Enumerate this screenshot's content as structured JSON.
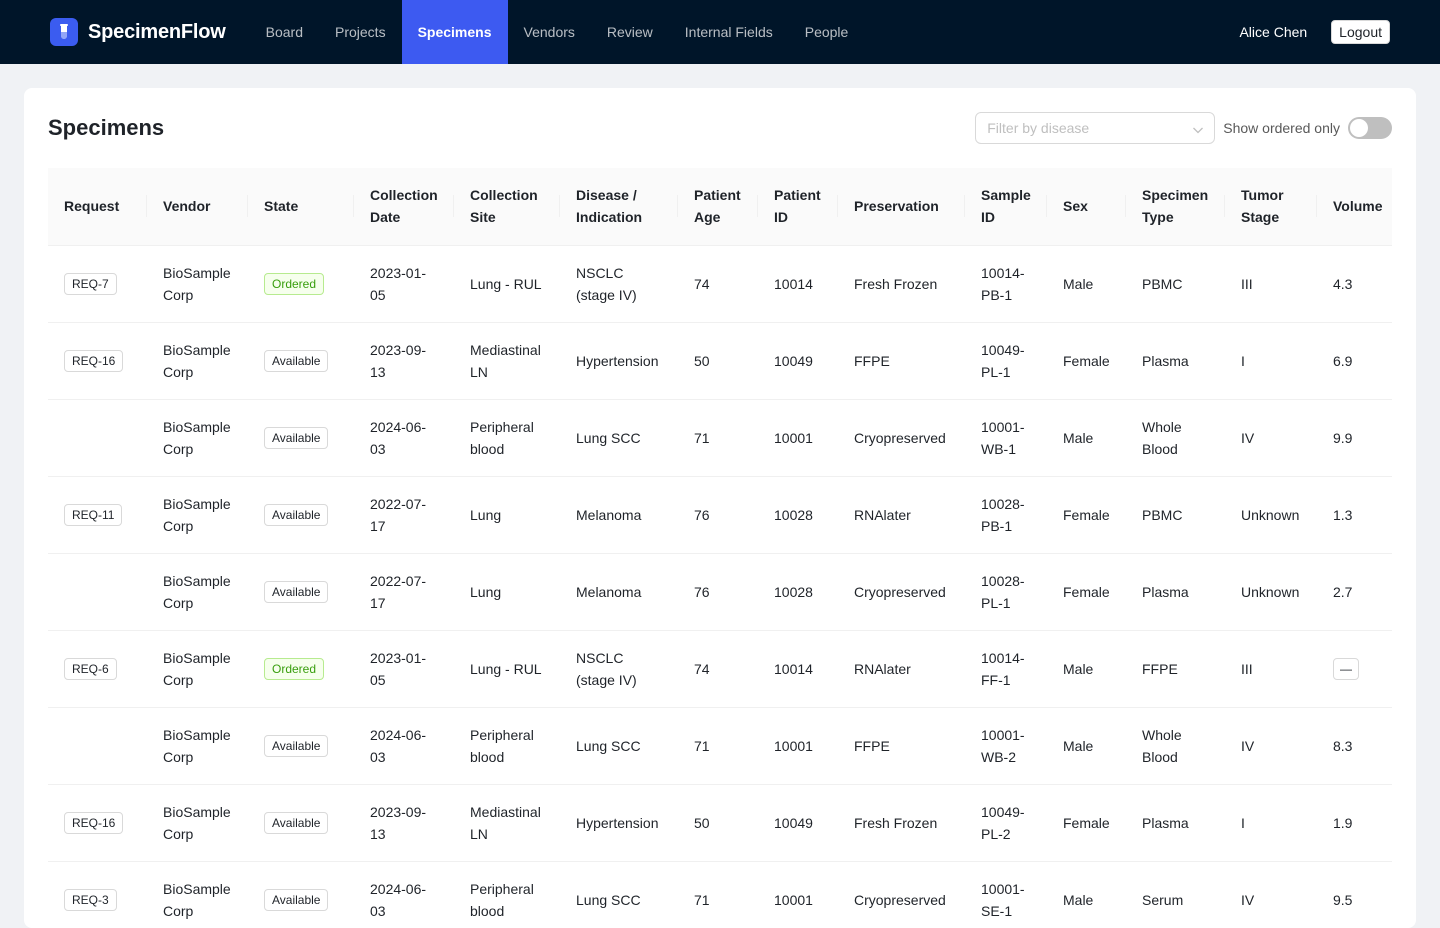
{
  "app": {
    "name": "SpecimenFlow",
    "logo_icon": "test-tube-icon",
    "accent": "#3d5af1",
    "nav_bg": "#001529"
  },
  "nav": {
    "items": [
      {
        "label": "Board",
        "active": false
      },
      {
        "label": "Projects",
        "active": false
      },
      {
        "label": "Specimens",
        "active": true
      },
      {
        "label": "Vendors",
        "active": false
      },
      {
        "label": "Review",
        "active": false
      },
      {
        "label": "Internal Fields",
        "active": false
      },
      {
        "label": "People",
        "active": false
      }
    ],
    "user_name": "Alice Chen",
    "logout_label": "Logout"
  },
  "page": {
    "title": "Specimens",
    "filter_placeholder": "Filter by disease",
    "toggle_label": "Show ordered only",
    "toggle_on": false
  },
  "table": {
    "columns": [
      [
        "Request"
      ],
      [
        "Vendor"
      ],
      [
        "State"
      ],
      [
        "Collection",
        "Date"
      ],
      [
        "Collection",
        "Site"
      ],
      [
        "Disease /",
        "Indication"
      ],
      [
        "Patient",
        "Age"
      ],
      [
        "Patient",
        "ID"
      ],
      [
        "Preservation"
      ],
      [
        "Sample",
        "ID"
      ],
      [
        "Sex"
      ],
      [
        "Specimen",
        "Type"
      ],
      [
        "Tumor",
        "Stage"
      ],
      [
        "Volume"
      ]
    ],
    "rows": [
      {
        "request": "REQ-7",
        "vendor": [
          "BioSample",
          "Corp"
        ],
        "state": "Ordered",
        "date": [
          "2023-01-",
          "05"
        ],
        "site": [
          "Lung - RUL"
        ],
        "disease": [
          "NSCLC",
          "(stage IV)"
        ],
        "age": "74",
        "pid": "10014",
        "preservation": "Fresh Frozen",
        "sid": [
          "10014-",
          "PB-1"
        ],
        "sex": "Male",
        "type": [
          "PBMC"
        ],
        "stage": "III",
        "volume": "4.3"
      },
      {
        "request": "REQ-16",
        "vendor": [
          "BioSample",
          "Corp"
        ],
        "state": "Available",
        "date": [
          "2023-09-",
          "13"
        ],
        "site": [
          "Mediastinal",
          "LN"
        ],
        "disease": [
          "Hypertension"
        ],
        "age": "50",
        "pid": "10049",
        "preservation": "FFPE",
        "sid": [
          "10049-",
          "PL-1"
        ],
        "sex": "Female",
        "type": [
          "Plasma"
        ],
        "stage": "I",
        "volume": "6.9"
      },
      {
        "request": "",
        "vendor": [
          "BioSample",
          "Corp"
        ],
        "state": "Available",
        "date": [
          "2024-06-",
          "03"
        ],
        "site": [
          "Peripheral",
          "blood"
        ],
        "disease": [
          "Lung SCC"
        ],
        "age": "71",
        "pid": "10001",
        "preservation": "Cryopreserved",
        "sid": [
          "10001-",
          "WB-1"
        ],
        "sex": "Male",
        "type": [
          "Whole",
          "Blood"
        ],
        "stage": "IV",
        "volume": "9.9"
      },
      {
        "request": "REQ-11",
        "vendor": [
          "BioSample",
          "Corp"
        ],
        "state": "Available",
        "date": [
          "2022-07-",
          "17"
        ],
        "site": [
          "Lung"
        ],
        "disease": [
          "Melanoma"
        ],
        "age": "76",
        "pid": "10028",
        "preservation": "RNAlater",
        "sid": [
          "10028-",
          "PB-1"
        ],
        "sex": "Female",
        "type": [
          "PBMC"
        ],
        "stage": "Unknown",
        "volume": "1.3"
      },
      {
        "request": "",
        "vendor": [
          "BioSample",
          "Corp"
        ],
        "state": "Available",
        "date": [
          "2022-07-",
          "17"
        ],
        "site": [
          "Lung"
        ],
        "disease": [
          "Melanoma"
        ],
        "age": "76",
        "pid": "10028",
        "preservation": "Cryopreserved",
        "sid": [
          "10028-",
          "PL-1"
        ],
        "sex": "Female",
        "type": [
          "Plasma"
        ],
        "stage": "Unknown",
        "volume": "2.7"
      },
      {
        "request": "REQ-6",
        "vendor": [
          "BioSample",
          "Corp"
        ],
        "state": "Ordered",
        "date": [
          "2023-01-",
          "05"
        ],
        "site": [
          "Lung - RUL"
        ],
        "disease": [
          "NSCLC",
          "(stage IV)"
        ],
        "age": "74",
        "pid": "10014",
        "preservation": "RNAlater",
        "sid": [
          "10014-",
          "FF-1"
        ],
        "sex": "Male",
        "type": [
          "FFPE"
        ],
        "stage": "III",
        "volume": "",
        "volume_empty_label": "—"
      },
      {
        "request": "",
        "vendor": [
          "BioSample",
          "Corp"
        ],
        "state": "Available",
        "date": [
          "2024-06-",
          "03"
        ],
        "site": [
          "Peripheral",
          "blood"
        ],
        "disease": [
          "Lung SCC"
        ],
        "age": "71",
        "pid": "10001",
        "preservation": "FFPE",
        "sid": [
          "10001-",
          "WB-2"
        ],
        "sex": "Male",
        "type": [
          "Whole",
          "Blood"
        ],
        "stage": "IV",
        "volume": "8.3"
      },
      {
        "request": "REQ-16",
        "vendor": [
          "BioSample",
          "Corp"
        ],
        "state": "Available",
        "date": [
          "2023-09-",
          "13"
        ],
        "site": [
          "Mediastinal",
          "LN"
        ],
        "disease": [
          "Hypertension"
        ],
        "age": "50",
        "pid": "10049",
        "preservation": "Fresh Frozen",
        "sid": [
          "10049-",
          "PL-2"
        ],
        "sex": "Female",
        "type": [
          "Plasma"
        ],
        "stage": "I",
        "volume": "1.9"
      },
      {
        "request": "REQ-3",
        "vendor": [
          "BioSample",
          "Corp"
        ],
        "state": "Available",
        "date": [
          "2024-06-",
          "03"
        ],
        "site": [
          "Peripheral",
          "blood"
        ],
        "disease": [
          "Lung SCC"
        ],
        "age": "71",
        "pid": "10001",
        "preservation": "Cryopreserved",
        "sid": [
          "10001-",
          "SE-1"
        ],
        "sex": "Male",
        "type": [
          "Serum"
        ],
        "stage": "IV",
        "volume": "9.5"
      }
    ]
  },
  "status_colors": {
    "ordered": "#389e0d",
    "available": "#1f2329"
  }
}
